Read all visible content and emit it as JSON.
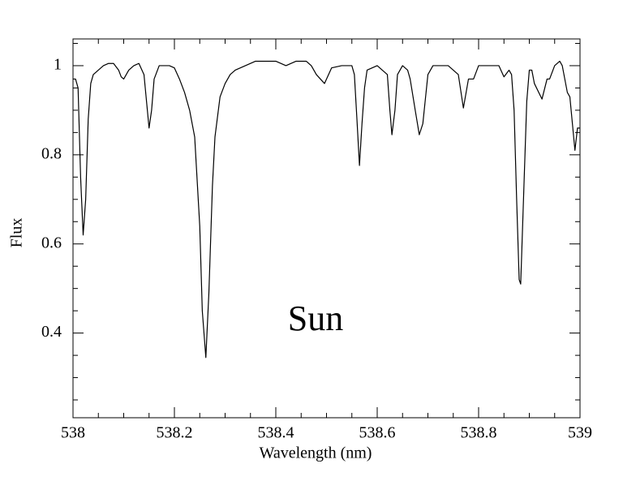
{
  "chart_data": {
    "type": "line",
    "xlabel": "Wavelength (nm)",
    "ylabel": "Flux",
    "annotations": [
      "Sun"
    ],
    "color": "#000000",
    "x": [
      538.0,
      538.005,
      538.01,
      538.015,
      538.02,
      538.025,
      538.03,
      538.035,
      538.04,
      538.05,
      538.06,
      538.07,
      538.08,
      538.09,
      538.095,
      538.1,
      538.11,
      538.12,
      538.13,
      538.14,
      538.145,
      538.15,
      538.155,
      538.16,
      538.17,
      538.18,
      538.19,
      538.2,
      538.21,
      538.22,
      538.23,
      538.235,
      538.24,
      538.25,
      538.255,
      538.262,
      538.268,
      538.275,
      538.28,
      538.29,
      538.3,
      538.31,
      538.32,
      538.34,
      538.36,
      538.38,
      538.4,
      538.42,
      538.44,
      538.46,
      538.47,
      538.48,
      538.496,
      538.5,
      538.51,
      538.53,
      538.55,
      538.555,
      538.56,
      538.565,
      538.57,
      538.575,
      538.58,
      538.6,
      538.62,
      538.625,
      538.629,
      538.635,
      538.64,
      538.65,
      538.66,
      538.665,
      538.675,
      538.683,
      538.69,
      538.7,
      538.71,
      538.74,
      538.76,
      538.77,
      538.78,
      538.79,
      538.8,
      538.82,
      538.84,
      538.85,
      538.86,
      538.865,
      538.87,
      538.875,
      538.88,
      538.883,
      538.89,
      538.895,
      538.9,
      538.905,
      538.91,
      538.925,
      538.935,
      538.94,
      538.95,
      538.96,
      538.965,
      538.97,
      538.975,
      538.98,
      538.985,
      538.99,
      538.995,
      539.0
    ],
    "values": [
      0.97,
      0.97,
      0.95,
      0.75,
      0.62,
      0.7,
      0.88,
      0.96,
      0.98,
      0.99,
      1.0,
      1.005,
      1.005,
      0.99,
      0.975,
      0.97,
      0.99,
      1.0,
      1.005,
      0.98,
      0.92,
      0.86,
      0.9,
      0.97,
      1.0,
      1.0,
      1.0,
      0.995,
      0.97,
      0.94,
      0.9,
      0.87,
      0.84,
      0.64,
      0.45,
      0.345,
      0.49,
      0.73,
      0.84,
      0.93,
      0.96,
      0.98,
      0.99,
      1.0,
      1.01,
      1.01,
      1.01,
      1.0,
      1.01,
      1.01,
      1.0,
      0.98,
      0.96,
      0.97,
      0.995,
      1.0,
      1.0,
      0.98,
      0.88,
      0.776,
      0.87,
      0.95,
      0.99,
      1.0,
      0.98,
      0.9,
      0.845,
      0.9,
      0.98,
      1.0,
      0.99,
      0.97,
      0.9,
      0.845,
      0.87,
      0.98,
      1.0,
      1.0,
      0.98,
      0.905,
      0.97,
      0.97,
      1.0,
      1.0,
      1.0,
      0.975,
      0.99,
      0.98,
      0.9,
      0.7,
      0.52,
      0.51,
      0.75,
      0.92,
      0.99,
      0.99,
      0.96,
      0.925,
      0.97,
      0.97,
      1.0,
      1.01,
      1.0,
      0.97,
      0.94,
      0.93,
      0.87,
      0.81,
      0.86,
      0.86
    ],
    "xlim": [
      538,
      539
    ],
    "ylim": [
      0.21,
      1.06
    ],
    "xticks": [
      538,
      538.2,
      538.4,
      538.6,
      538.8,
      539
    ],
    "yticks": [
      0.4,
      0.6,
      0.8,
      1
    ],
    "xminorticks": [
      538.05,
      538.1,
      538.15,
      538.25,
      538.3,
      538.35,
      538.45,
      538.5,
      538.55,
      538.65,
      538.7,
      538.75,
      538.85,
      538.9,
      538.95
    ],
    "yminorticks": [
      0.25,
      0.3,
      0.35,
      0.45,
      0.5,
      0.55,
      0.65,
      0.7,
      0.75,
      0.85,
      0.9,
      0.95,
      1.05
    ]
  }
}
